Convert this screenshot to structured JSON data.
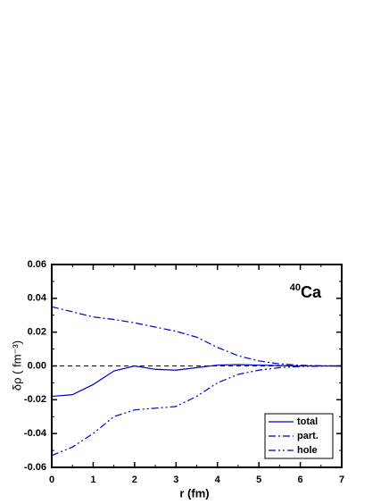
{
  "chart_data": {
    "type": "line",
    "xlabel": "r (fm)",
    "ylabel": "δρ ( fm⁻³)",
    "annotation": [
      "40",
      "Ca"
    ],
    "x": [
      0,
      0.5,
      1,
      1.5,
      2,
      2.5,
      3,
      3.5,
      4,
      4.5,
      5,
      5.5,
      6,
      6.5,
      7
    ],
    "series": [
      {
        "name": "total",
        "color": "#0000cc",
        "dash": "solid",
        "values": [
          -0.018,
          -0.017,
          -0.011,
          -0.003,
          0.0,
          -0.002,
          -0.0025,
          -0.001,
          0.0005,
          0.0008,
          0.0005,
          0.0002,
          0.0,
          0.0,
          0.0
        ]
      },
      {
        "name": "part.",
        "color": "#0000cc",
        "dash": "dashdot",
        "values": [
          0.035,
          0.032,
          0.029,
          0.0275,
          0.0255,
          0.023,
          0.0205,
          0.017,
          0.011,
          0.006,
          0.003,
          0.0012,
          0.0004,
          0.0001,
          0.0
        ]
      },
      {
        "name": "hole",
        "color": "#0000cc",
        "dash": "dashdotdot",
        "values": [
          -0.053,
          -0.048,
          -0.04,
          -0.03,
          -0.026,
          -0.025,
          -0.024,
          -0.018,
          -0.01,
          -0.005,
          -0.0025,
          -0.001,
          -0.0003,
          -0.0001,
          0.0
        ]
      }
    ],
    "reference_line": 0,
    "xlim": [
      0,
      7
    ],
    "xticks": [
      0,
      1,
      2,
      3,
      4,
      5,
      6,
      7
    ],
    "ylim": [
      -0.06,
      0.06
    ],
    "yticks": [
      -0.06,
      -0.04,
      -0.02,
      {
        "value": 0,
        "label": "0.00"
      },
      0.02,
      0.04,
      0.06
    ],
    "legend": "lower right"
  }
}
